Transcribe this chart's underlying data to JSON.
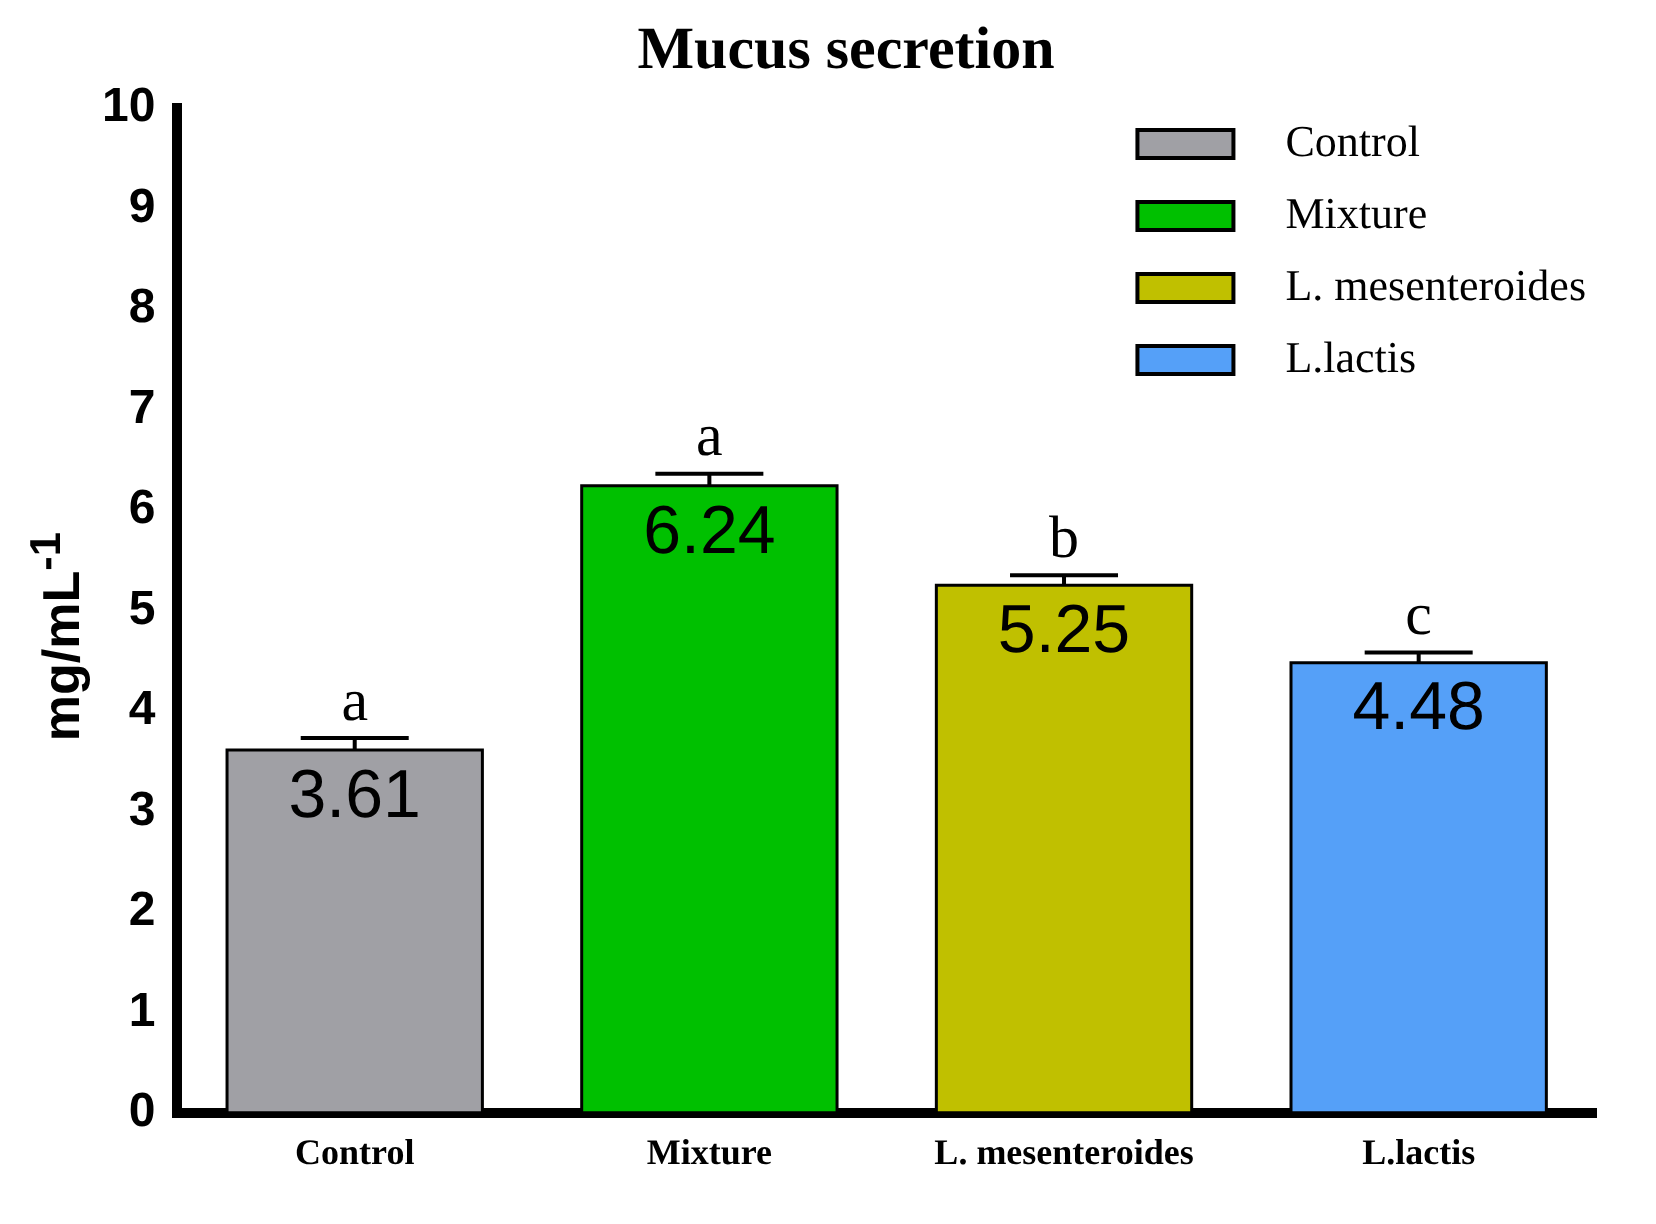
{
  "chart_data": {
    "type": "bar",
    "title": "Mucus secretion",
    "ylabel": "mg/mL$^{-1}$",
    "categories": [
      "Control",
      "Mixture",
      "L. mesenteroides",
      "L.lactis"
    ],
    "series": [
      {
        "name": "Control",
        "color": "#a0a0a5",
        "values": [
          3.61,
          null,
          null,
          null
        ],
        "errors": [
          0.12,
          null,
          null,
          null
        ]
      },
      {
        "name": "Mixture",
        "color": "#00c000",
        "values": [
          null,
          6.24,
          null,
          null
        ],
        "errors": [
          null,
          0.12,
          null,
          null
        ]
      },
      {
        "name": "L. mesenteroides",
        "color": "#c0c000",
        "values": [
          null,
          null,
          5.25,
          null
        ],
        "errors": [
          null,
          null,
          0.1,
          null
        ]
      },
      {
        "name": "L.lactis",
        "color": "#55a0f8",
        "values": [
          null,
          null,
          null,
          4.48
        ],
        "errors": [
          null,
          null,
          null,
          0.1
        ]
      }
    ],
    "data_labels": true,
    "annotations": [
      {
        "text": "a",
        "x": "Control",
        "y": 3.73
      },
      {
        "text": "a",
        "x": "Mixture",
        "y": 6.36
      },
      {
        "text": "b",
        "x": "L. mesenteroides",
        "y": 5.35
      },
      {
        "text": "c",
        "x": "L.lactis",
        "y": 4.58
      }
    ],
    "ylim": [
      0,
      10
    ],
    "yticks": [
      0,
      1,
      2,
      3,
      4,
      5,
      6,
      7,
      8,
      9,
      10
    ],
    "grid": false,
    "legend": "top right"
  }
}
